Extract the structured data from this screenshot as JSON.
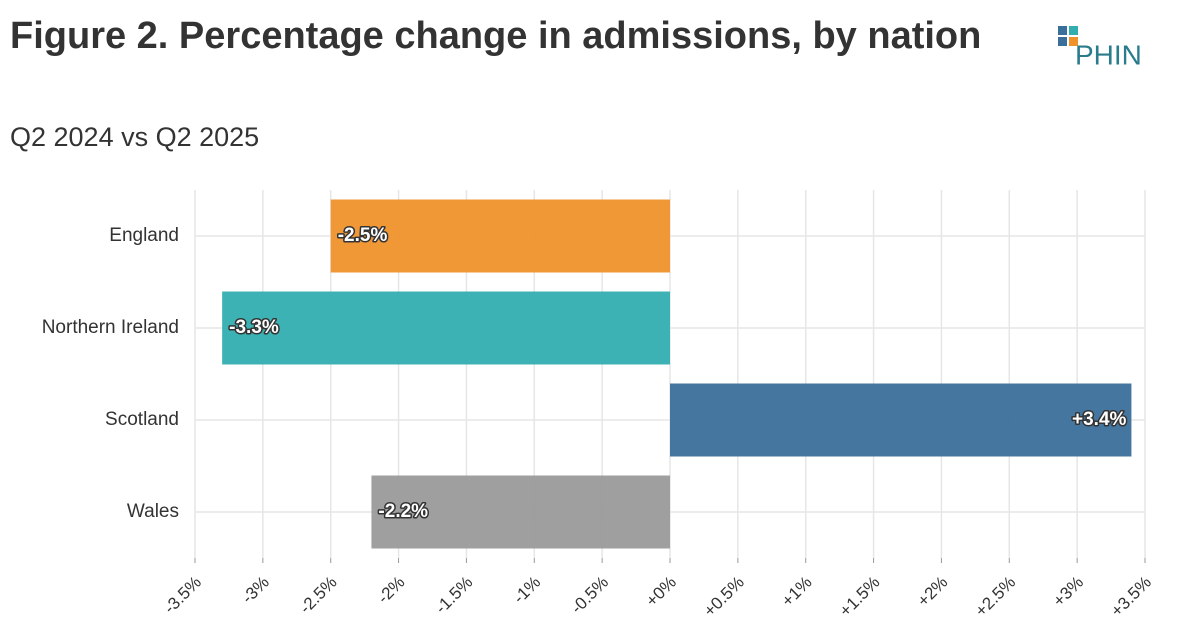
{
  "chart_data": {
    "type": "hbar",
    "title": "Figure 2. Percentage change in admissions, by nation",
    "subtitle": "Q2 2024 vs Q2 2025",
    "categories": [
      "England",
      "Northern Ireland",
      "Scotland",
      "Wales"
    ],
    "values": [
      -2.5,
      -3.3,
      3.4,
      -2.2
    ],
    "value_labels": [
      "-2.5%",
      "-3.3%",
      "+3.4%",
      "-2.2%"
    ],
    "colors": [
      "#f0922b",
      "#33aeb0",
      "#3a6f9b",
      "#9a9a9a"
    ],
    "xlim": [
      -3.5,
      3.5
    ],
    "xticks": [
      {
        "value": -3.5,
        "label": "-3.5%"
      },
      {
        "value": -3,
        "label": "-3%"
      },
      {
        "value": -2.5,
        "label": "-2.5%"
      },
      {
        "value": -2,
        "label": "-2%"
      },
      {
        "value": -1.5,
        "label": "-1.5%"
      },
      {
        "value": -1,
        "label": "-1%"
      },
      {
        "value": -0.5,
        "label": "-0.5%"
      },
      {
        "value": 0,
        "label": "+0%"
      },
      {
        "value": 0.5,
        "label": "+0.5%"
      },
      {
        "value": 1,
        "label": "+1%"
      },
      {
        "value": 1.5,
        "label": "+1.5%"
      },
      {
        "value": 2,
        "label": "+2%"
      },
      {
        "value": 2.5,
        "label": "+2.5%"
      },
      {
        "value": 3,
        "label": "+3%"
      },
      {
        "value": 3.5,
        "label": "+3.5%"
      }
    ],
    "grid": true
  },
  "logo": {
    "text": "PHIN"
  }
}
